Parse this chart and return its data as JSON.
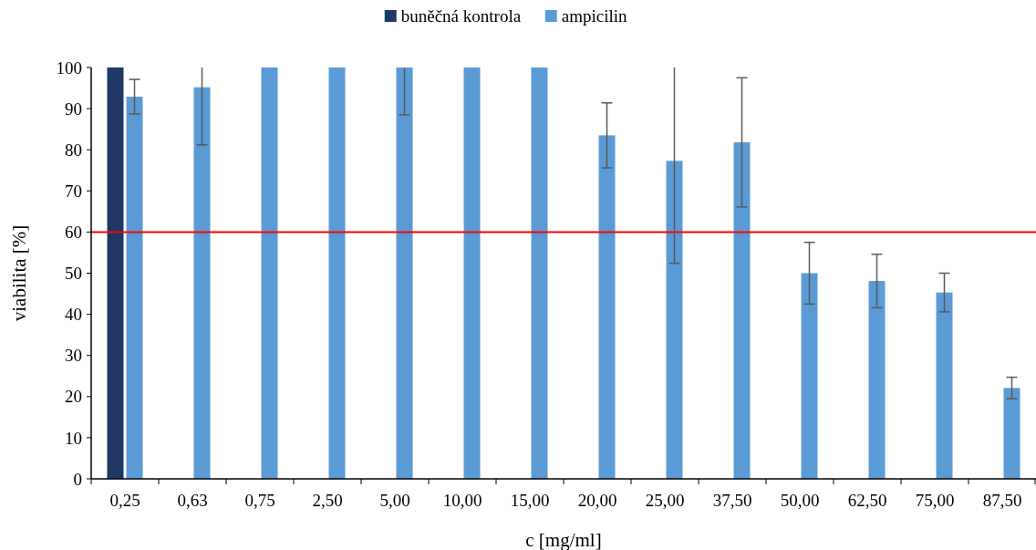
{
  "chart_data": {
    "type": "bar",
    "xlabel": "c [mg/ml]",
    "ylabel": "viabilita [%]",
    "categories": [
      "0,25",
      "0,63",
      "0,75",
      "2,50",
      "5,00",
      "10,00",
      "15,00",
      "20,00",
      "25,00",
      "37,50",
      "50,00",
      "62,50",
      "75,00",
      "87,50"
    ],
    "series": [
      {
        "name": "buněčná kontrola",
        "color": "#203864",
        "values": [
          100,
          null,
          null,
          null,
          null,
          null,
          null,
          null,
          null,
          null,
          null,
          null,
          null,
          null
        ]
      },
      {
        "name": "ampicilin",
        "color": "#5b9bd5",
        "values": [
          92.9,
          95.2,
          100,
          100,
          100,
          100,
          100,
          83.5,
          77.3,
          81.8,
          50.0,
          48.1,
          45.3,
          22.1
        ],
        "errors": [
          4.2,
          [
            81.2,
            100
          ],
          null,
          null,
          [
            88.5,
            100
          ],
          null,
          null,
          7.9,
          [
            52.4,
            100
          ],
          15.7,
          7.5,
          6.5,
          4.7,
          2.6
        ]
      }
    ],
    "ylim": [
      0,
      100
    ],
    "yticks": [
      0,
      10,
      20,
      30,
      40,
      50,
      60,
      70,
      80,
      90,
      100
    ],
    "ref_lines": [
      {
        "axis": "y",
        "value": 60,
        "color": "#ff0000"
      }
    ],
    "grid": false,
    "legend": "top"
  }
}
